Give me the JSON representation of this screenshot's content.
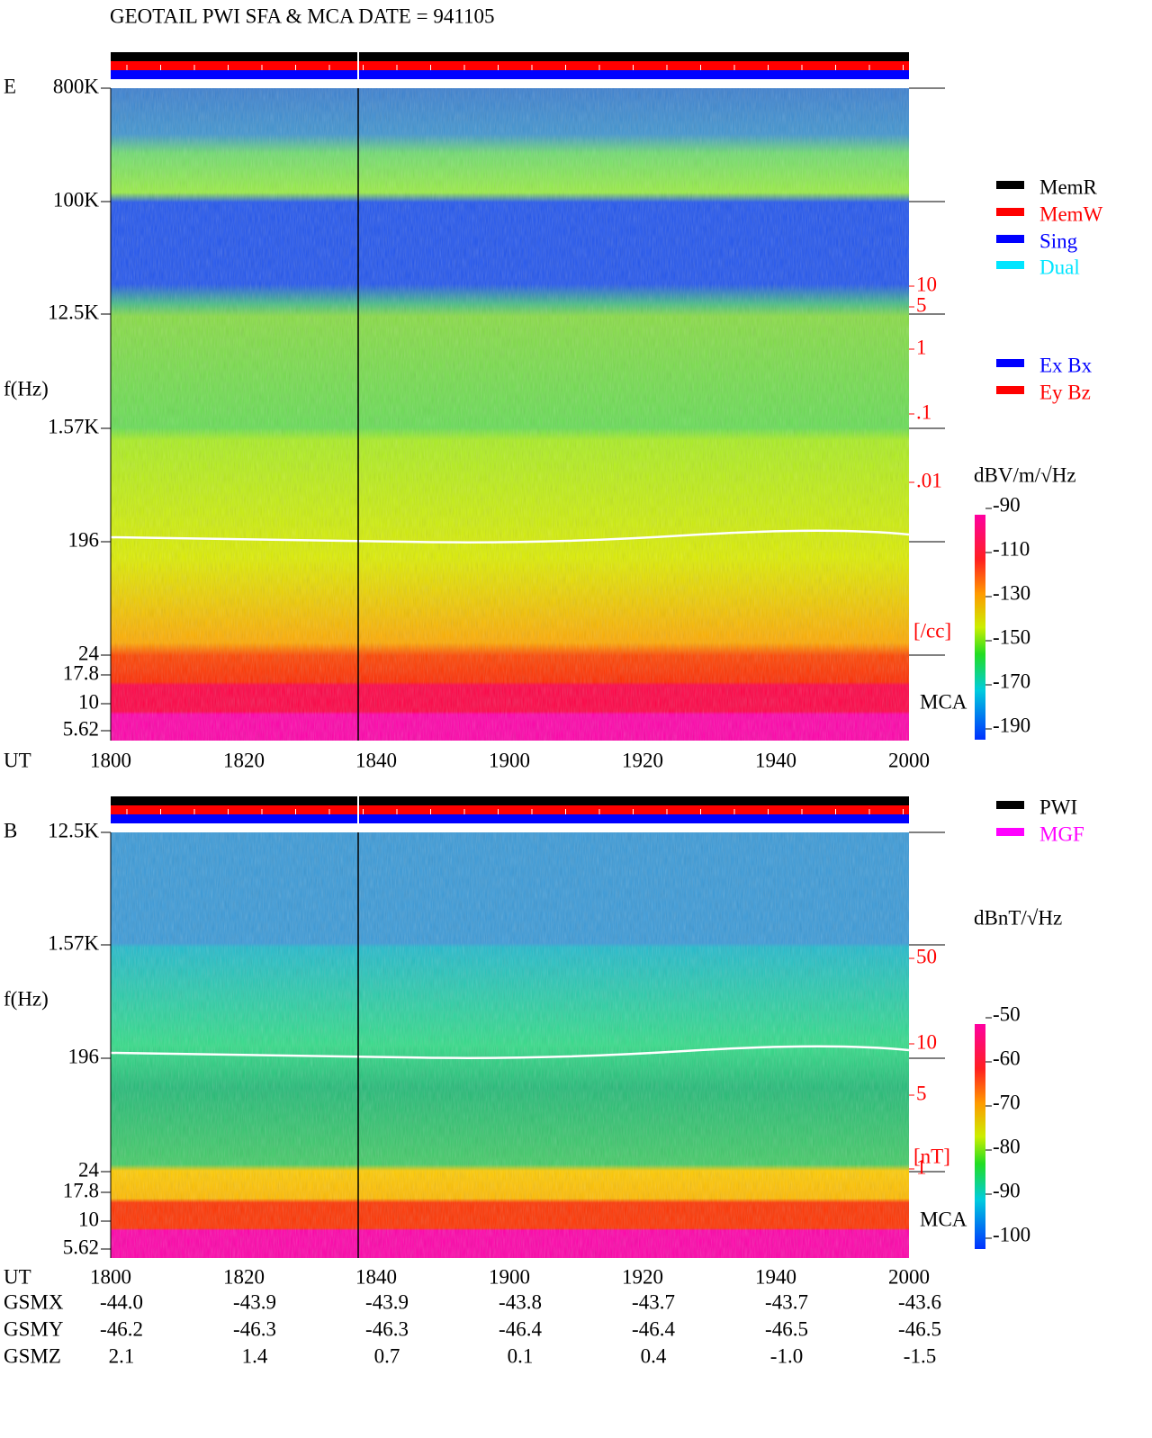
{
  "header": {
    "title": "GEOTAIL  PWI SFA & MCA   DATE = 941105"
  },
  "panels": [
    {
      "label": "E",
      "y_axis_label": "f(Hz)",
      "y_ticks": [
        "800K",
        "100K",
        "12.5K",
        "1.57K",
        "196",
        "24",
        "17.8",
        "10",
        "5.62"
      ],
      "x_axis_label": "UT",
      "x_ticks": [
        "1800",
        "1820",
        "1840",
        "1900",
        "1920",
        "1940",
        "2000"
      ],
      "density_scale": [
        "10",
        "5",
        "1",
        ".1",
        ".01"
      ],
      "density_unit": "[/cc]",
      "mca_label": "MCA",
      "legend": [
        {
          "label": "MemR",
          "color": "#000000"
        },
        {
          "label": "MemW",
          "color": "#ff0000"
        },
        {
          "label": "Sing",
          "color": "#0000ff"
        },
        {
          "label": "Dual",
          "color": "#00e5ff"
        },
        {
          "label": "Ex Bx",
          "color": "#0000ff"
        },
        {
          "label": "Ey Bz",
          "color": "#ff0000"
        }
      ],
      "colorbar": {
        "unit": "dBV/m/√Hz",
        "ticks": [
          "-90",
          "-110",
          "-130",
          "-150",
          "-170",
          "-190"
        ]
      }
    },
    {
      "label": "B",
      "y_axis_label": "f(Hz)",
      "y_ticks": [
        "12.5K",
        "1.57K",
        "196",
        "24",
        "17.8",
        "10",
        "5.62"
      ],
      "x_axis_label": "UT",
      "x_ticks": [
        "1800",
        "1820",
        "1840",
        "1900",
        "1920",
        "1940",
        "2000"
      ],
      "density_scale": [
        "50",
        "10",
        "5",
        "1"
      ],
      "density_unit": "[nT]",
      "mca_label": "MCA",
      "legend": [
        {
          "label": "PWI",
          "color": "#000000"
        },
        {
          "label": "MGF",
          "color": "#ff00ff"
        }
      ],
      "colorbar": {
        "unit": "dBnT/√Hz",
        "ticks": [
          "-50",
          "-60",
          "-70",
          "-80",
          "-90",
          "-100"
        ]
      }
    }
  ],
  "ephemeris": {
    "rows": [
      {
        "label": "GSMX",
        "values": [
          "-44.0",
          "-43.9",
          "-43.9",
          "-43.8",
          "-43.7",
          "-43.7",
          "-43.6"
        ]
      },
      {
        "label": "GSMY",
        "values": [
          "-46.2",
          "-46.3",
          "-46.3",
          "-46.4",
          "-46.4",
          "-46.5",
          "-46.5"
        ]
      },
      {
        "label": "GSMZ",
        "values": [
          "2.1",
          "1.4",
          "0.7",
          "0.1",
          "0.4",
          "-1.0",
          "-1.5"
        ]
      }
    ]
  }
}
